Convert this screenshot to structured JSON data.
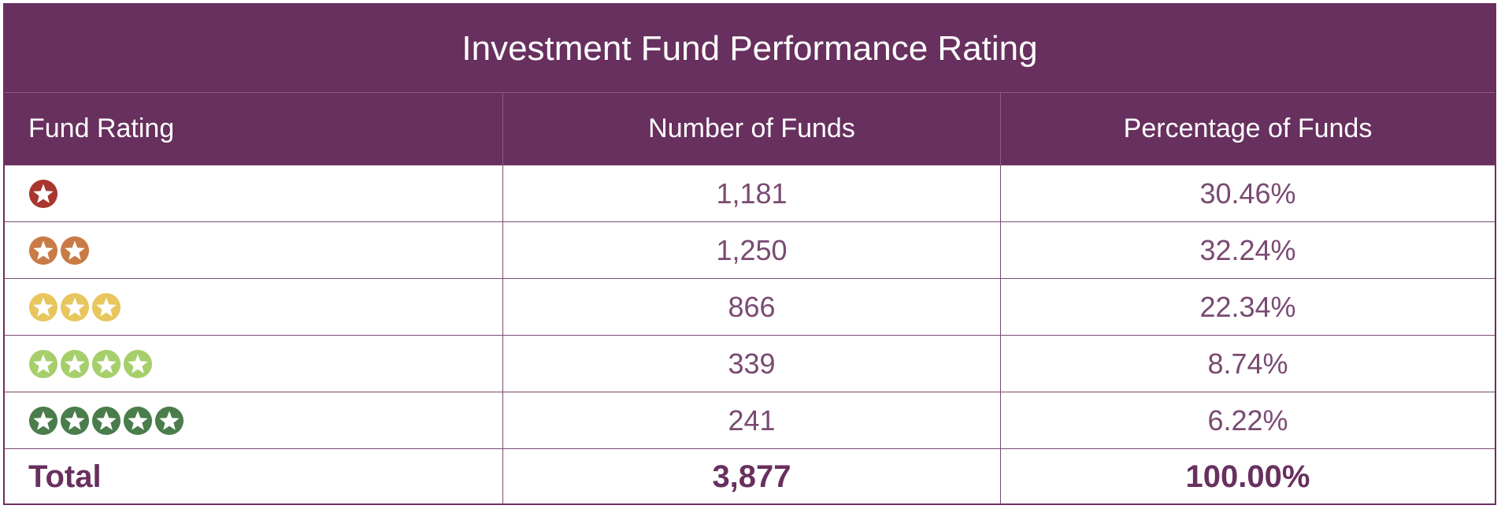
{
  "title": "Investment Fund Performance Rating",
  "columns": [
    "Fund Rating",
    "Number of Funds",
    "Percentage of Funds"
  ],
  "rows": [
    {
      "stars": 1,
      "count": "1,181",
      "percent": "30.46%",
      "color": "#a8362e"
    },
    {
      "stars": 2,
      "count": "1,250",
      "percent": "32.24%",
      "color": "#c97b46"
    },
    {
      "stars": 3,
      "count": "866",
      "percent": "22.34%",
      "color": "#e8c65e"
    },
    {
      "stars": 4,
      "count": "339",
      "percent": "8.74%",
      "color": "#a6cf6b"
    },
    {
      "stars": 5,
      "count": "241",
      "percent": "6.22%",
      "color": "#4a7d4b"
    }
  ],
  "total": {
    "label": "Total",
    "count": "3,877",
    "percent": "100.00%"
  },
  "chart_data": {
    "type": "table",
    "title": "Investment Fund Performance Rating",
    "columns": [
      "Fund Rating",
      "Number of Funds",
      "Percentage of Funds"
    ],
    "rating_stars": [
      1,
      2,
      3,
      4,
      5
    ],
    "number_of_funds": [
      1181,
      1250,
      866,
      339,
      241
    ],
    "percentage_of_funds": [
      30.46,
      32.24,
      22.34,
      8.74,
      6.22
    ],
    "total_funds": 3877,
    "total_percentage": 100.0
  }
}
